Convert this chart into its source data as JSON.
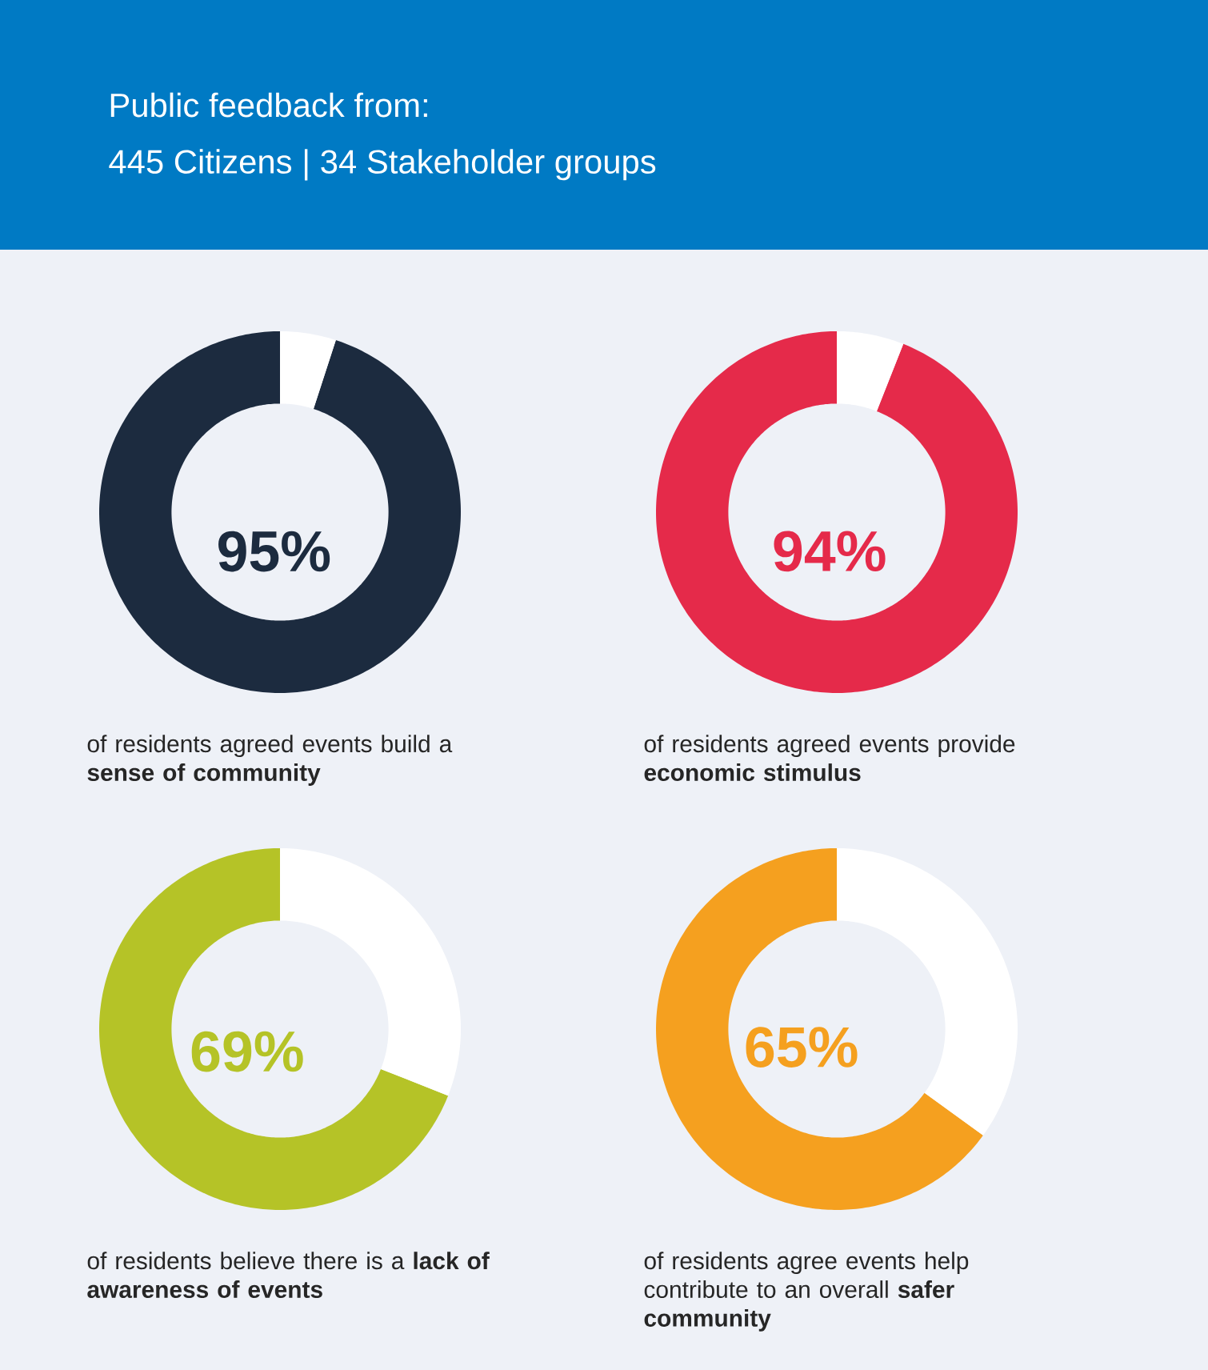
{
  "chart_data": [
    {
      "type": "other",
      "title": "Public feedback from:",
      "subtitle": "445 Citizens | 34 Stakeholder groups"
    },
    {
      "type": "donut",
      "categories": [
        null,
        null
      ],
      "values": [
        95,
        5
      ],
      "colors": [
        "#1c2b3f",
        "#ffffff"
      ],
      "value_labels": [
        "95%",
        null
      ],
      "annotations": [
        "of residents agreed events build a **sense of community**"
      ]
    },
    {
      "type": "donut",
      "categories": [
        null,
        null
      ],
      "values": [
        94,
        6
      ],
      "colors": [
        "#e52a4a",
        "#ffffff"
      ],
      "value_labels": [
        "94%",
        null
      ],
      "annotations": [
        "of residents agreed events provide **economic stimulus**"
      ]
    },
    {
      "type": "donut",
      "categories": [
        null,
        null
      ],
      "values": [
        69,
        31
      ],
      "colors": [
        "#b5c327",
        "#ffffff"
      ],
      "value_labels": [
        "69%",
        null
      ],
      "annotations": [
        "of residents believe there is a **lack of awareness of events**"
      ]
    },
    {
      "type": "donut",
      "categories": [
        null,
        null
      ],
      "values": [
        65,
        35
      ],
      "colors": [
        "#f5a01f",
        "#ffffff"
      ],
      "value_labels": [
        "65%",
        null
      ],
      "annotations": [
        "of residents agree events help contribute to an overall **safer community**"
      ]
    }
  ]
}
